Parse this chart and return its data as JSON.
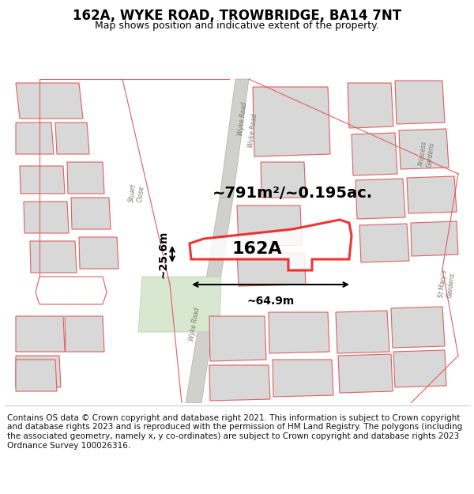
{
  "title": "162A, WYKE ROAD, TROWBRIDGE, BA14 7NT",
  "subtitle": "Map shows position and indicative extent of the property.",
  "footer": "Contains OS data © Crown copyright and database right 2021. This information is subject to Crown copyright and database rights 2023 and is reproduced with the permission of HM Land Registry. The polygons (including the associated geometry, namely x, y co-ordinates) are subject to Crown copyright and database rights 2023 Ordnance Survey 100026316.",
  "area_label": "~791m²/~0.195ac.",
  "width_label": "~64.9m",
  "height_label": "~25.6m",
  "plot_label": "162A",
  "bg_color": "#ffffff",
  "building_fill": "#d8d8d8",
  "building_edge": "#e06060",
  "highlight_color": "#ee1111",
  "highlight_fill": "#ffffff",
  "road_fill": "#d0d0cc",
  "road_edge": "#b8b8b4",
  "green_fill": "#d8e8d0",
  "figsize": [
    6.0,
    6.25
  ],
  "dpi": 100,
  "title_fontsize": 12,
  "subtitle_fontsize": 9,
  "footer_fontsize": 7.5,
  "label_fontsize": 16,
  "area_fontsize": 14,
  "dim_fontsize": 10
}
